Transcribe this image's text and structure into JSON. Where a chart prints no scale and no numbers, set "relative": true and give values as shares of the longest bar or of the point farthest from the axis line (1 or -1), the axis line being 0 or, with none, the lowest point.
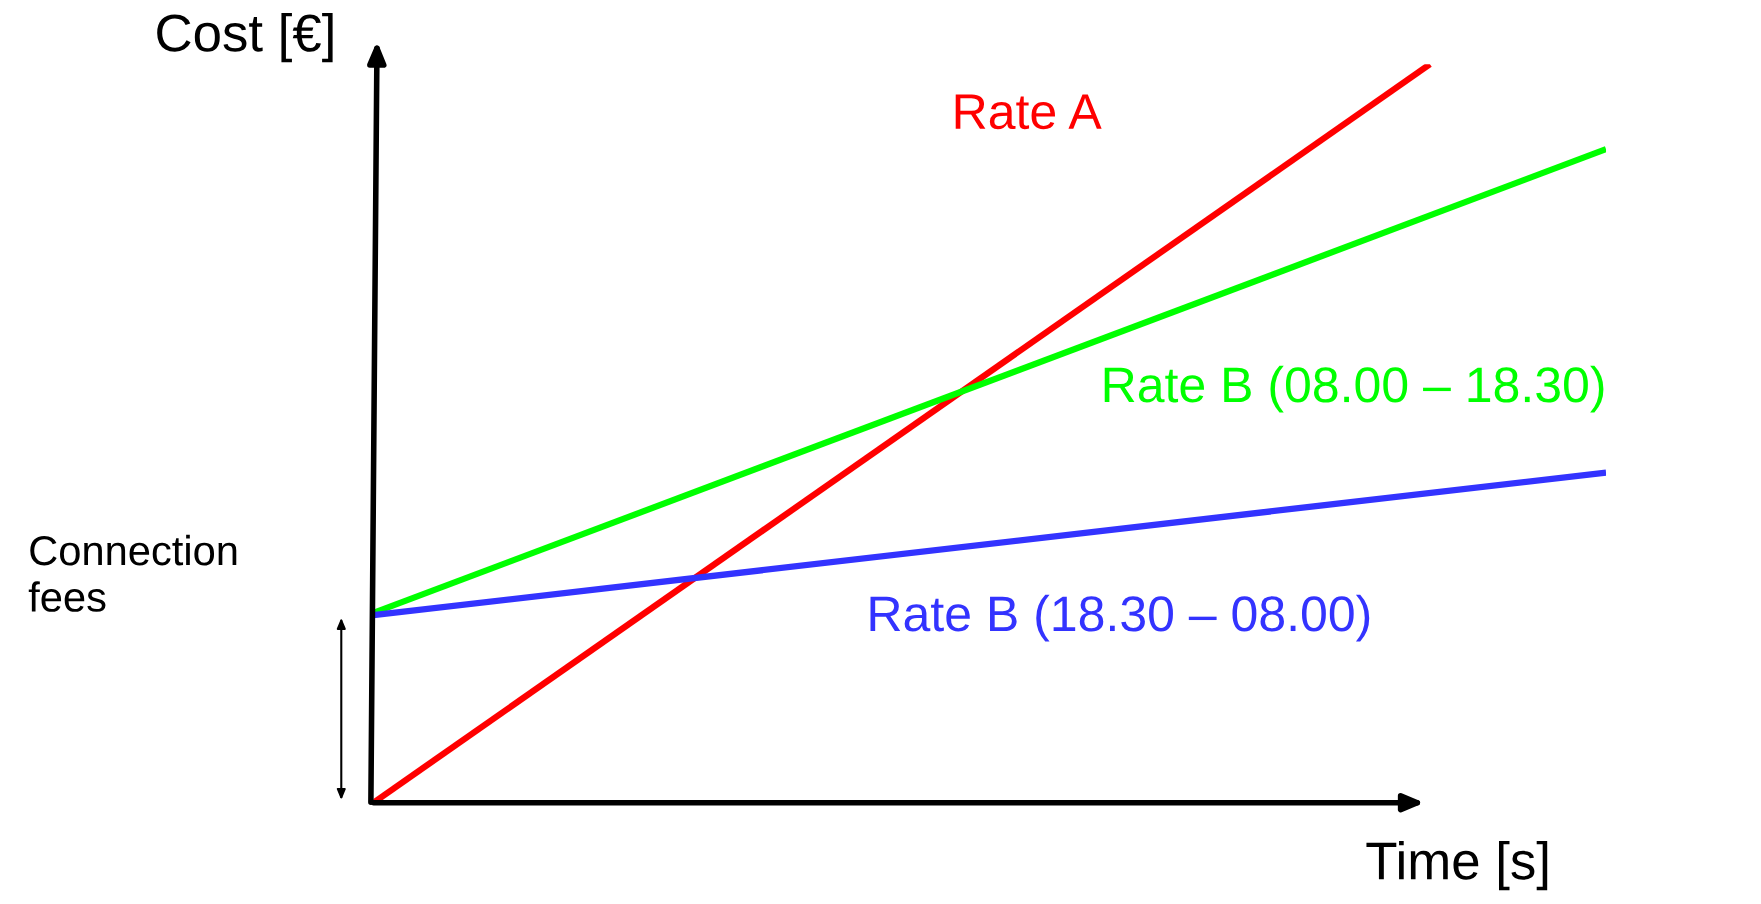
{
  "chart_data": {
    "type": "line",
    "relative": true,
    "xlabel": "Time [s]",
    "ylabel": "Cost [€]",
    "annotations": [
      "Connection fees"
    ],
    "marker": "none",
    "line_style": "solid",
    "categories": [
      null,
      null,
      null,
      null,
      null,
      null,
      null,
      null
    ],
    "series": [
      {
        "name": "Rate A",
        "color": "#ff0000",
        "values": [
          0,
          null,
          null,
          null,
          null,
          null,
          1,
          null
        ]
      },
      {
        "name": "Rate B (08.00 – 18.30)",
        "color": "#00ff00",
        "values": [
          0.257,
          null,
          null,
          null,
          null,
          null,
          null,
          0.885
        ]
      },
      {
        "name": "Rate B (18.30 – 08.00)",
        "color": "#3333ff",
        "values": [
          0.254,
          null,
          null,
          null,
          null,
          null,
          null,
          0.447
        ]
      }
    ]
  }
}
